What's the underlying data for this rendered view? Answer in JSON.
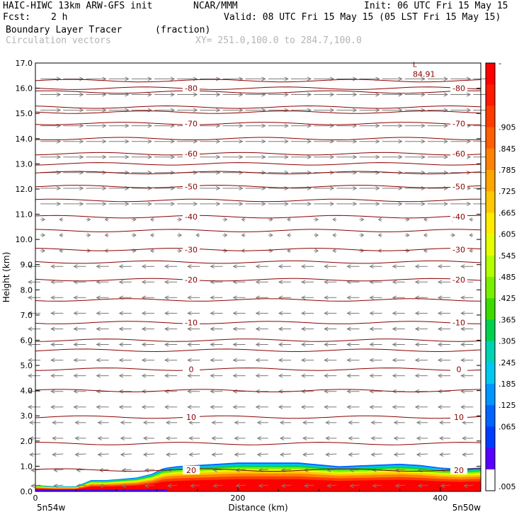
{
  "header": {
    "model": "HAIC-HIWC 13km ARW-GFS init",
    "org": "NCAR/MMM",
    "init": "Init: 06 UTC Fri 15 May 15",
    "fcst_label": "Fcst:",
    "fcst_value": "2 h",
    "valid": "Valid: 08 UTC Fri 15 May 15 (05 LST Fri 15 May 15)",
    "field": "Boundary Layer Tracer",
    "units": "(fraction)",
    "vectors": "Circulation vectors",
    "xy": "XY= 251.0,100.0 to 284.7,100.0"
  },
  "chart_data": {
    "type": "cross-section",
    "xlabel": "Distance (km)",
    "ylabel": "Height (km)",
    "xlim": [
      0,
      440
    ],
    "ylim": [
      0,
      17
    ],
    "x_ticks": [
      "0",
      "200",
      "400"
    ],
    "x_tick_values": [
      0,
      200,
      400
    ],
    "y_ticks": [
      "0.0",
      "1.0",
      "2.0",
      "3.0",
      "4.0",
      "5.0",
      "6.0",
      "7.0",
      "8.0",
      "9.0",
      "10.0",
      "11.0",
      "12.0",
      "13.0",
      "14.0",
      "15.0",
      "16.0",
      "17.0"
    ],
    "endpoint_left": "5n54w",
    "endpoint_right": "5n50w",
    "colorbar": {
      "labels": [
        "-",
        ".905",
        ".845",
        ".785",
        ".725",
        ".665",
        ".605",
        ".545",
        ".485",
        ".425",
        ".365",
        ".305",
        ".245",
        ".185",
        ".125",
        ".065",
        ".005"
      ],
      "colors": [
        "#ff0000",
        "#ff1a00",
        "#ff3c00",
        "#ff5f00",
        "#ff8300",
        "#ffa500",
        "#ffc800",
        "#ffeb00",
        "#e6ff00",
        "#b4ff00",
        "#78f000",
        "#3cdc00",
        "#00d250",
        "#00d2b4",
        "#00c8f0",
        "#0096ff",
        "#0064ff",
        "#003cff",
        "#5a00ff",
        "#ffffff"
      ]
    },
    "tracer_top": {
      "x": [
        0,
        20,
        40,
        55,
        70,
        85,
        100,
        115,
        125,
        130,
        140,
        160,
        200,
        260,
        300,
        330,
        360,
        380,
        400,
        420,
        440
      ],
      "y": [
        0.25,
        0.2,
        0.2,
        0.45,
        0.45,
        0.5,
        0.55,
        0.7,
        0.9,
        0.95,
        1.0,
        1.05,
        1.15,
        1.15,
        1.0,
        1.05,
        1.1,
        1.05,
        0.95,
        0.9,
        0.95
      ]
    },
    "contours": {
      "color": "#8b0000",
      "levels": [
        {
          "label": "-80",
          "y": 16.0
        },
        {
          "label": "-70",
          "y": 14.6
        },
        {
          "label": "-60",
          "y": 13.4
        },
        {
          "label": "-50",
          "y": 12.1
        },
        {
          "label": "-40",
          "y": 10.9
        },
        {
          "label": "-30",
          "y": 9.6
        },
        {
          "label": "-20",
          "y": 8.4
        },
        {
          "label": "-10",
          "y": 6.7
        },
        {
          "label": "0",
          "y": 4.85
        },
        {
          "label": "10",
          "y": 2.95
        },
        {
          "label": "20",
          "y": 0.85
        }
      ],
      "extra_lines": [
        16.3,
        15.85,
        15.25,
        15.05,
        14.0,
        13.0,
        12.65,
        11.55,
        10.35,
        9.1,
        7.6,
        6.0,
        5.6,
        4.0,
        1.9
      ],
      "max_label": "84.91"
    }
  }
}
